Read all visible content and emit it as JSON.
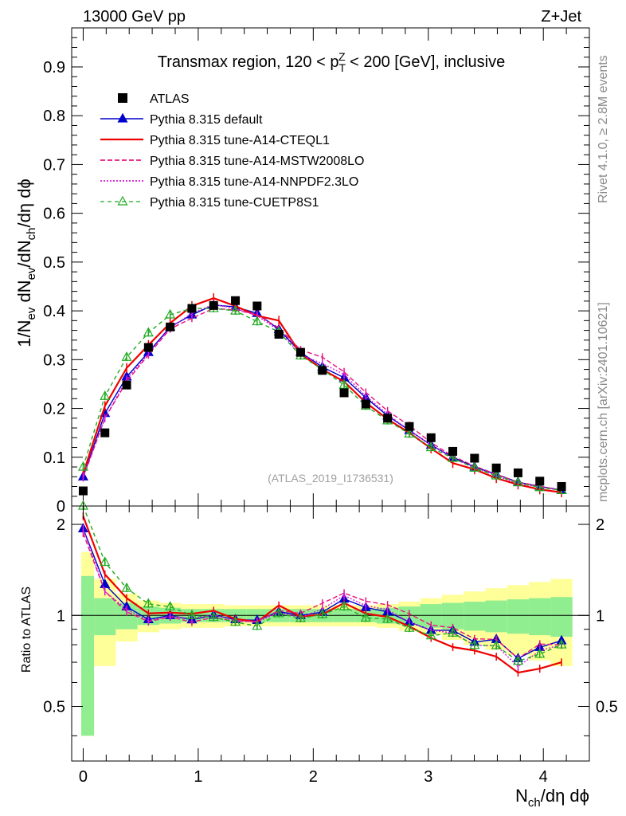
{
  "header": {
    "left": "13000 GeV pp",
    "right": "Z+Jet"
  },
  "side_labels": {
    "rivet": "Rivet 4.1.0, ≥ 2.8M events",
    "source": "mcplots.cern.ch [arXiv:2401.10621]"
  },
  "chart_data": {
    "type": "line",
    "title": "Transmax region, 120 < p_T^Z < 200 [GeV], inclusive",
    "analysis_id": "(ATLAS_2019_I1736531)",
    "xlabel": "N_ch/dη dϕ",
    "ylabel": "1/N_ev dN_ev/dN_ch/dη dϕ",
    "ratio_ylabel": "Ratio to ATLAS",
    "xlim": [
      -0.1,
      4.4
    ],
    "ylim": [
      0,
      0.98
    ],
    "ratio_ylim": [
      0.33,
      2.3
    ],
    "x_ticks": [
      "0",
      "1",
      "2",
      "3",
      "4"
    ],
    "y_ticks": [
      "0",
      "0.1",
      "0.2",
      "0.3",
      "0.4",
      "0.5",
      "0.6",
      "0.7",
      "0.8",
      "0.9"
    ],
    "ratio_y_ticks": [
      "0.5",
      "1",
      "2"
    ],
    "x": [
      0,
      0.189,
      0.378,
      0.567,
      0.756,
      0.945,
      1.134,
      1.323,
      1.512,
      1.701,
      1.89,
      2.079,
      2.268,
      2.457,
      2.646,
      2.835,
      3.024,
      3.213,
      3.402,
      3.591,
      3.78,
      3.969,
      4.158
    ],
    "legend": [
      "ATLAS",
      "Pythia 8.315 default",
      "Pythia 8.315 tune-A14-CTEQL1",
      "Pythia 8.315 tune-A14-MSTW2008LO",
      "Pythia 8.315 tune-A14-NNPDF2.3LO",
      "Pythia 8.315 tune-CUETP8S1"
    ],
    "data": {
      "name": "ATLAS",
      "values": [
        0.031,
        0.15,
        0.248,
        0.325,
        0.367,
        0.405,
        0.411,
        0.421,
        0.41,
        0.352,
        0.315,
        0.278,
        0.232,
        0.209,
        0.18,
        0.163,
        0.14,
        0.112,
        0.098,
        0.078,
        0.068,
        0.051,
        0.04
      ],
      "band_inner": [
        0.63,
        0.14,
        0.1,
        0.07,
        0.06,
        0.05,
        0.05,
        0.05,
        0.05,
        0.05,
        0.05,
        0.05,
        0.05,
        0.05,
        0.06,
        0.07,
        0.09,
        0.1,
        0.11,
        0.12,
        0.13,
        0.14,
        0.15
      ],
      "band_outer": [
        0.77,
        0.32,
        0.18,
        0.12,
        0.1,
        0.09,
        0.09,
        0.08,
        0.08,
        0.08,
        0.08,
        0.08,
        0.08,
        0.08,
        0.09,
        0.11,
        0.14,
        0.17,
        0.2,
        0.23,
        0.26,
        0.29,
        0.32
      ]
    },
    "series": [
      {
        "name": "Pythia 8.315 default",
        "color": "#0000cc",
        "dash": "",
        "marker": "triangle",
        "values": [
          0.06,
          0.19,
          0.265,
          0.315,
          0.367,
          0.392,
          0.412,
          0.408,
          0.395,
          0.362,
          0.315,
          0.285,
          0.263,
          0.222,
          0.185,
          0.155,
          0.125,
          0.1,
          0.08,
          0.065,
          0.049,
          0.04,
          0.033
        ],
        "err": 0.008
      },
      {
        "name": "Pythia 8.315 tune-A14-CTEQL1",
        "color": "#ee0000",
        "dash": "",
        "marker": "",
        "values": [
          0.066,
          0.205,
          0.283,
          0.33,
          0.375,
          0.41,
          0.426,
          0.41,
          0.39,
          0.38,
          0.312,
          0.28,
          0.255,
          0.212,
          0.178,
          0.15,
          0.118,
          0.088,
          0.075,
          0.057,
          0.044,
          0.034,
          0.028
        ],
        "err": 0.01
      },
      {
        "name": "Pythia 8.315 tune-A14-MSTW2008LO",
        "color": "#e8147c",
        "dash": "6,3",
        "marker": "",
        "values": [
          0.058,
          0.18,
          0.255,
          0.31,
          0.363,
          0.385,
          0.405,
          0.402,
          0.392,
          0.365,
          0.32,
          0.305,
          0.275,
          0.233,
          0.195,
          0.165,
          0.13,
          0.102,
          0.082,
          0.065,
          0.049,
          0.041,
          0.032
        ],
        "err": 0.008
      },
      {
        "name": "Pythia 8.315 tune-A14-NNPDF2.3LO",
        "color": "#d81ad8",
        "dash": "2,2",
        "marker": "",
        "values": [
          0.06,
          0.18,
          0.26,
          0.312,
          0.365,
          0.395,
          0.413,
          0.405,
          0.39,
          0.36,
          0.31,
          0.292,
          0.27,
          0.225,
          0.188,
          0.155,
          0.125,
          0.098,
          0.078,
          0.062,
          0.046,
          0.039,
          0.032
        ],
        "err": 0.008
      },
      {
        "name": "Pythia 8.315 tune-CUETP8S1",
        "color": "#22aa22",
        "dash": "5,4",
        "marker": "triangle-open",
        "values": [
          0.08,
          0.225,
          0.305,
          0.355,
          0.392,
          0.405,
          0.405,
          0.4,
          0.378,
          0.357,
          0.308,
          0.28,
          0.248,
          0.205,
          0.175,
          0.148,
          0.12,
          0.098,
          0.078,
          0.062,
          0.048,
          0.038,
          0.032
        ],
        "err": 0.008
      }
    ]
  }
}
